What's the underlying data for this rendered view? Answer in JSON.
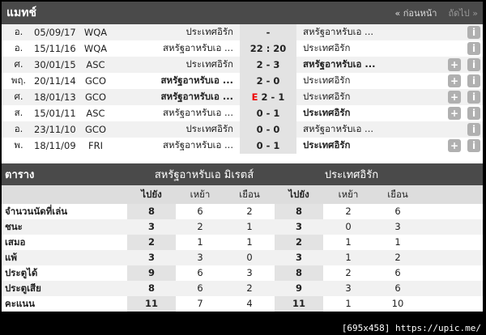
{
  "matches": {
    "title": "แมทช์",
    "prev": "« ก่อนหน้า",
    "next": "ถัดไป »",
    "rows": [
      {
        "day": "อ.",
        "date": "05/09/17",
        "comp": "WQA",
        "home": "ประเทศอิรัก",
        "score": "-",
        "away": "สหรัฐอาหรับเอ ...",
        "flag": "",
        "plus": false,
        "winner": ""
      },
      {
        "day": "อ.",
        "date": "15/11/16",
        "comp": "WQA",
        "home": "สหรัฐอาหรับเอ ...",
        "score": "22 : 20",
        "away": "ประเทศอิรัก",
        "flag": "",
        "plus": false,
        "winner": ""
      },
      {
        "day": "ศ.",
        "date": "30/01/15",
        "comp": "ASC",
        "home": "ประเทศอิรัก",
        "score": "2 - 3",
        "away": "สหรัฐอาหรับเอ ...",
        "flag": "",
        "plus": true,
        "winner": "away"
      },
      {
        "day": "พฤ.",
        "date": "20/11/14",
        "comp": "GCO",
        "home": "สหรัฐอาหรับเอ ...",
        "score": "2 - 0",
        "away": "ประเทศอิรัก",
        "flag": "",
        "plus": true,
        "winner": "home"
      },
      {
        "day": "ศ.",
        "date": "18/01/13",
        "comp": "GCO",
        "home": "สหรัฐอาหรับเอ ...",
        "score": "2 - 1",
        "away": "ประเทศอิรัก",
        "flag": "E",
        "plus": true,
        "winner": "home"
      },
      {
        "day": "ส.",
        "date": "15/01/11",
        "comp": "ASC",
        "home": "สหรัฐอาหรับเอ ...",
        "score": "0 - 1",
        "away": "ประเทศอิรัก",
        "flag": "",
        "plus": true,
        "winner": "away"
      },
      {
        "day": "อ.",
        "date": "23/11/10",
        "comp": "GCO",
        "home": "ประเทศอิรัก",
        "score": "0 - 0",
        "away": "สหรัฐอาหรับเอ ...",
        "flag": "",
        "plus": false,
        "winner": ""
      },
      {
        "day": "พ.",
        "date": "18/11/09",
        "comp": "FRI",
        "home": "สหรัฐอาหรับเอ ...",
        "score": "0 - 1",
        "away": "ประเทศอิรัก",
        "flag": "",
        "plus": true,
        "winner": "away"
      }
    ]
  },
  "table": {
    "title": "ตาราง",
    "team1": "สหรัฐอาหรับเอ มิเรตส์",
    "team2": "ประเทศอิรัก",
    "cols": [
      "ไปยัง",
      "เหย้า",
      "เยือน",
      "ไปยัง",
      "เหย้า",
      "เยือน"
    ],
    "rows": [
      {
        "label": "จำนวนนัดที่เล่น",
        "v": [
          "8",
          "6",
          "2",
          "8",
          "2",
          "6"
        ]
      },
      {
        "label": "ชนะ",
        "v": [
          "3",
          "2",
          "1",
          "3",
          "0",
          "3"
        ]
      },
      {
        "label": "เสมอ",
        "v": [
          "2",
          "1",
          "1",
          "2",
          "1",
          "1"
        ]
      },
      {
        "label": "แพ้",
        "v": [
          "3",
          "3",
          "0",
          "3",
          "1",
          "2"
        ]
      },
      {
        "label": "ประตูได้",
        "v": [
          "9",
          "6",
          "3",
          "8",
          "2",
          "6"
        ]
      },
      {
        "label": "ประตูเสีย",
        "v": [
          "8",
          "6",
          "2",
          "9",
          "3",
          "6"
        ]
      },
      {
        "label": "คะแนน",
        "v": [
          "11",
          "7",
          "4",
          "11",
          "1",
          "10"
        ]
      }
    ]
  },
  "watermark": "[695x458] https://upic.me/"
}
